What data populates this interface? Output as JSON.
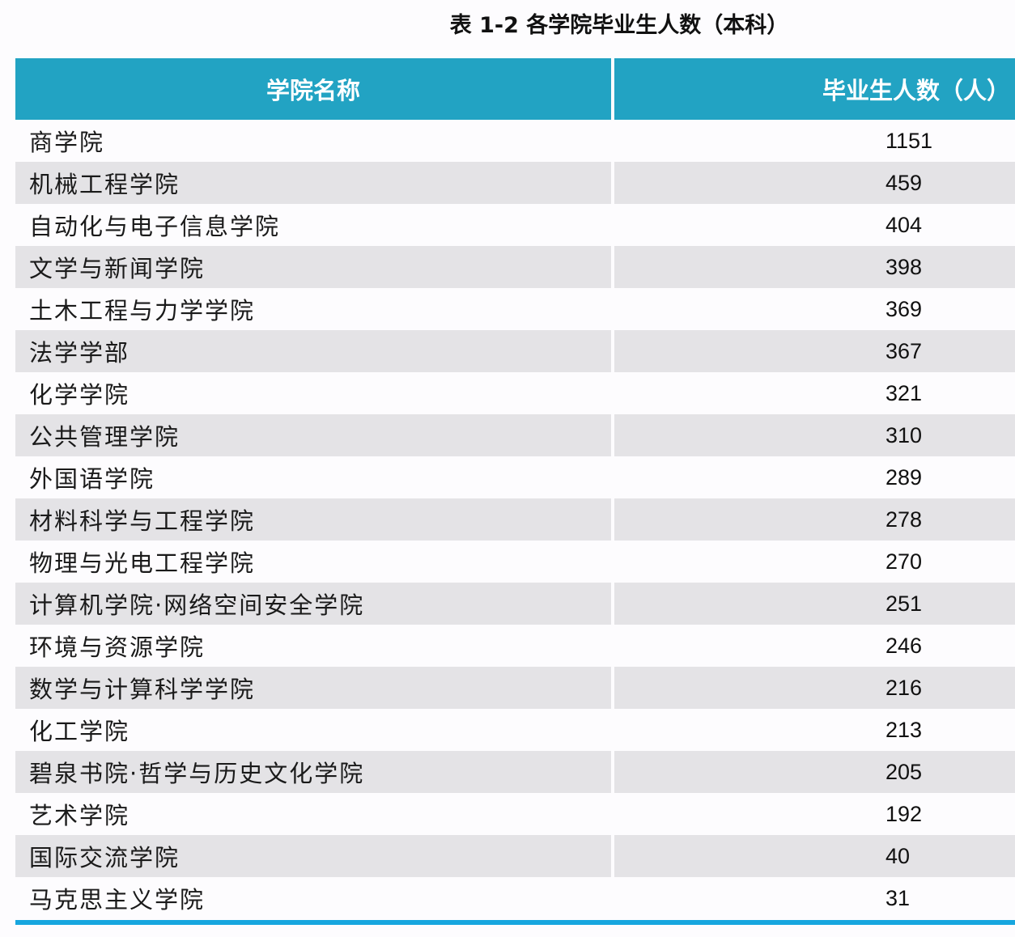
{
  "title": "表 1-2  各学院毕业生人数（本科）",
  "table": {
    "columns": [
      "学院名称",
      "毕业生人数（人）"
    ],
    "header_color": "#22a3c3",
    "stripe_color": "#e4e3e6",
    "rule_color": "#17a6df",
    "rows": [
      {
        "name": "商学院",
        "count": "1151"
      },
      {
        "name": "机械工程学院",
        "count": "459"
      },
      {
        "name": "自动化与电子信息学院",
        "count": "404"
      },
      {
        "name": "文学与新闻学院",
        "count": "398"
      },
      {
        "name": "土木工程与力学学院",
        "count": "369"
      },
      {
        "name": "法学学部",
        "count": "367"
      },
      {
        "name": "化学学院",
        "count": "321"
      },
      {
        "name": "公共管理学院",
        "count": "310"
      },
      {
        "name": "外国语学院",
        "count": "289"
      },
      {
        "name": "材料科学与工程学院",
        "count": "278"
      },
      {
        "name": "物理与光电工程学院",
        "count": "270"
      },
      {
        "name": "计算机学院·网络空间安全学院",
        "count": "251"
      },
      {
        "name": "环境与资源学院",
        "count": "246"
      },
      {
        "name": "数学与计算科学学院",
        "count": "216"
      },
      {
        "name": "化工学院",
        "count": "213"
      },
      {
        "name": "碧泉书院·哲学与历史文化学院",
        "count": "205"
      },
      {
        "name": "艺术学院",
        "count": "192"
      },
      {
        "name": "国际交流学院",
        "count": "40"
      },
      {
        "name": "马克思主义学院",
        "count": "31"
      }
    ]
  }
}
